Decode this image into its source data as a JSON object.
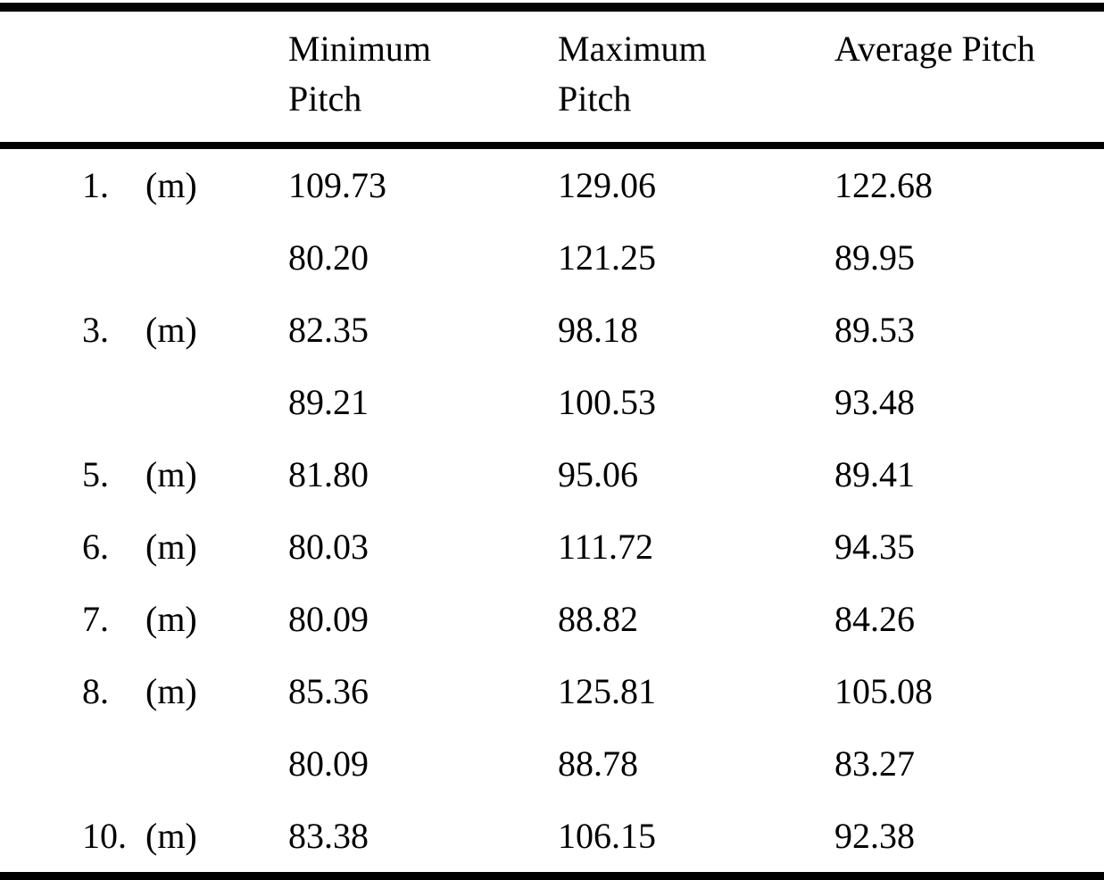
{
  "table": {
    "headers": {
      "min": "Minimum Pitch",
      "max": "Maximum Pitch",
      "avg": "Average Pitch"
    },
    "rows": [
      {
        "num": "1.",
        "unit": "(m)",
        "min": "109.73",
        "max": "129.06",
        "avg": "122.68"
      },
      {
        "num": "",
        "unit": "",
        "min": "80.20",
        "max": "121.25",
        "avg": "89.95"
      },
      {
        "num": "3.",
        "unit": "(m)",
        "min": "82.35",
        "max": "98.18",
        "avg": "89.53"
      },
      {
        "num": "",
        "unit": "",
        "min": "89.21",
        "max": "100.53",
        "avg": "93.48"
      },
      {
        "num": "5.",
        "unit": "(m)",
        "min": "81.80",
        "max": "95.06",
        "avg": "89.41"
      },
      {
        "num": "6.",
        "unit": "(m)",
        "min": "80.03",
        "max": "111.72",
        "avg": "94.35"
      },
      {
        "num": "7.",
        "unit": "(m)",
        "min": "80.09",
        "max": "88.82",
        "avg": "84.26"
      },
      {
        "num": "8.",
        "unit": "(m)",
        "min": "85.36",
        "max": "125.81",
        "avg": "105.08"
      },
      {
        "num": "",
        "unit": "",
        "min": "80.09",
        "max": "88.78",
        "avg": "83.27"
      },
      {
        "num": "10.",
        "unit": "(m)",
        "min": "83.38",
        "max": "106.15",
        "avg": "92.38"
      }
    ]
  },
  "chart_data": {
    "type": "table",
    "title": "",
    "columns": [
      "",
      "",
      "Minimum Pitch",
      "Maximum Pitch",
      "Average Pitch"
    ],
    "rows": [
      [
        "1.",
        "(m)",
        109.73,
        129.06,
        122.68
      ],
      [
        "",
        "",
        80.2,
        121.25,
        89.95
      ],
      [
        "3.",
        "(m)",
        82.35,
        98.18,
        89.53
      ],
      [
        "",
        "",
        89.21,
        100.53,
        93.48
      ],
      [
        "5.",
        "(m)",
        81.8,
        95.06,
        89.41
      ],
      [
        "6.",
        "(m)",
        80.03,
        111.72,
        94.35
      ],
      [
        "7.",
        "(m)",
        80.09,
        88.82,
        84.26
      ],
      [
        "8.",
        "(m)",
        85.36,
        125.81,
        105.08
      ],
      [
        "",
        "",
        80.09,
        88.78,
        83.27
      ],
      [
        "10.",
        "(m)",
        83.38,
        106.15,
        92.38
      ]
    ],
    "colors": {
      "text": "#000000",
      "background": "#ffffff",
      "rule": "#000000"
    }
  }
}
